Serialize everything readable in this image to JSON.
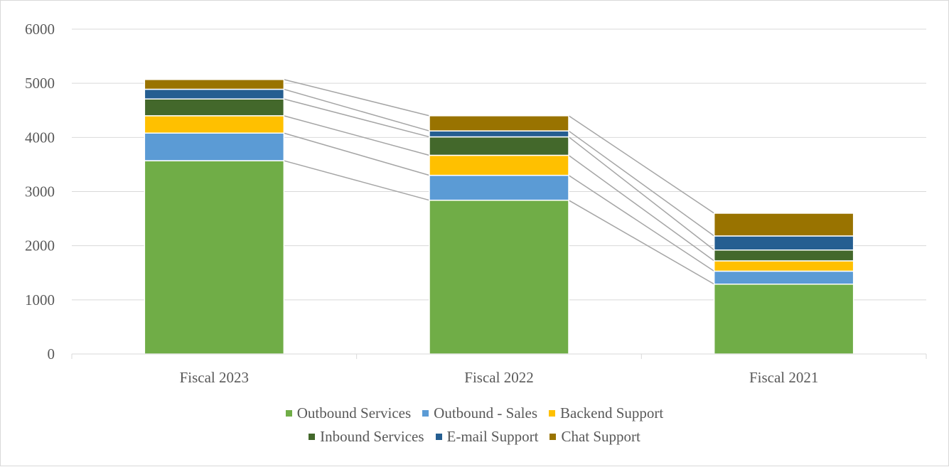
{
  "chart_data": {
    "type": "bar",
    "stacked": true,
    "categories": [
      "Fiscal 2023",
      "Fiscal 2022",
      "Fiscal 2021"
    ],
    "series": [
      {
        "name": "Outbound Services",
        "color": "#70ad47",
        "values": [
          3570,
          2840,
          1290
        ]
      },
      {
        "name": "Outbound - Sales",
        "color": "#5b9bd5",
        "values": [
          510,
          460,
          240
        ]
      },
      {
        "name": "Backend Support",
        "color": "#ffc000",
        "values": [
          320,
          370,
          190
        ]
      },
      {
        "name": "Inbound Services",
        "color": "#43682b",
        "values": [
          310,
          340,
          200
        ]
      },
      {
        "name": "E-mail Support",
        "color": "#255e91",
        "values": [
          180,
          110,
          260
        ]
      },
      {
        "name": "Chat Support",
        "color": "#997300",
        "values": [
          180,
          280,
          420
        ]
      }
    ],
    "y_ticks": [
      0,
      1000,
      2000,
      3000,
      4000,
      5000,
      6000
    ],
    "ylim": [
      0,
      6000
    ],
    "grid": true,
    "series_lines": true,
    "legend_position": "bottom"
  }
}
